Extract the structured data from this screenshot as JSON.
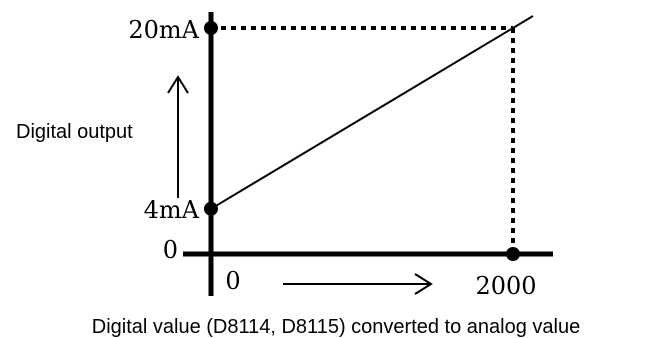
{
  "chart_data": {
    "type": "line",
    "title": "",
    "ylabel": "Digital output",
    "xlabel": "Digital value (D8114, D8115) converted to analog value",
    "x_ticks": [
      "0",
      "2000"
    ],
    "y_ticks": [
      "0",
      "4mA",
      "20mA"
    ],
    "xlim": [
      0,
      2000
    ],
    "ylim_ma": [
      0,
      20
    ],
    "series": [
      {
        "points": [
          {
            "x": 0,
            "y": 4
          },
          {
            "x": 2000,
            "y": 20
          }
        ]
      }
    ],
    "grid": false,
    "legend": "none"
  }
}
